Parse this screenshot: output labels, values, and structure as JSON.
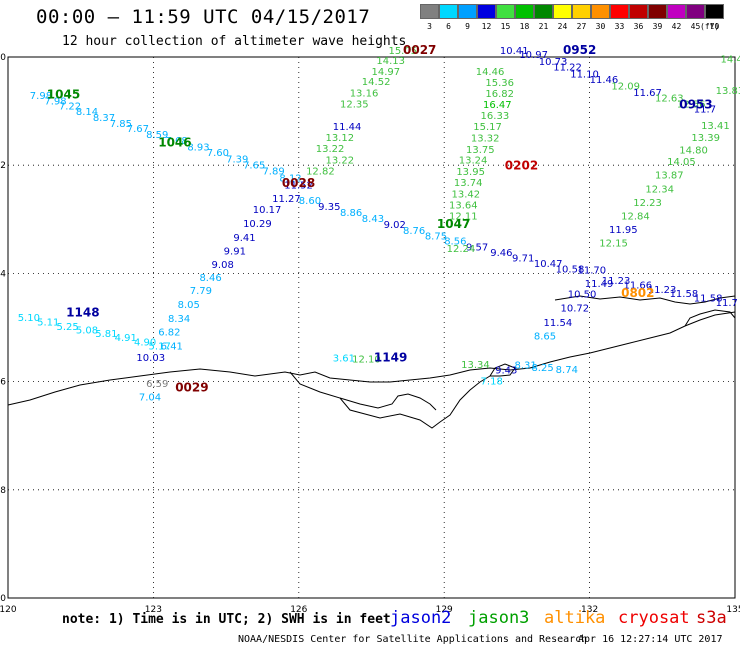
{
  "title": "00:00 – 11:59 UTC 04/15/2017",
  "subtitle": "12 hour collection of altimeter wave heights",
  "legend": {
    "unit": "(ft)",
    "items": [
      {
        "label": "3",
        "color": "#808080"
      },
      {
        "label": "6",
        "color": "#00d8ff"
      },
      {
        "label": "9",
        "color": "#00a0ff"
      },
      {
        "label": "12",
        "color": "#0000e0"
      },
      {
        "label": "15",
        "color": "#40e040"
      },
      {
        "label": "18",
        "color": "#00c000"
      },
      {
        "label": "21",
        "color": "#008800"
      },
      {
        "label": "24",
        "color": "#ffff00"
      },
      {
        "label": "27",
        "color": "#ffd000"
      },
      {
        "label": "30",
        "color": "#ff9000"
      },
      {
        "label": "33",
        "color": "#ff0000"
      },
      {
        "label": "36",
        "color": "#c00000"
      },
      {
        "label": "39",
        "color": "#800000"
      },
      {
        "label": "42",
        "color": "#c000c0"
      },
      {
        "label": "45",
        "color": "#800080"
      },
      {
        "label": "70",
        "color": "#000000"
      }
    ]
  },
  "map": {
    "lon_range": [
      120,
      135
    ],
    "lat_range": [
      -70,
      -60
    ],
    "x_ticks": [
      {
        "value": 120,
        "label": "120"
      },
      {
        "value": 123,
        "label": "123"
      },
      {
        "value": 126,
        "label": "126"
      },
      {
        "value": 129,
        "label": "129"
      },
      {
        "value": 132,
        "label": "132"
      },
      {
        "value": 135,
        "label": "135"
      }
    ],
    "y_ticks": [
      {
        "value": -60,
        "label": "-60"
      },
      {
        "value": -62,
        "label": "-62"
      },
      {
        "value": -64,
        "label": "-64"
      },
      {
        "value": -66,
        "label": "-66"
      },
      {
        "value": -68,
        "label": "-68"
      },
      {
        "value": -70,
        "label": "-70"
      }
    ],
    "pass_times": [
      {
        "label": "1045",
        "lon": 120.8,
        "lat": -60.77,
        "color": "#008800"
      },
      {
        "label": "1046",
        "lon": 123.1,
        "lat": -61.65,
        "color": "#008800"
      },
      {
        "label": "1047",
        "lon": 128.85,
        "lat": -63.16,
        "color": "#008800"
      },
      {
        "label": "1148",
        "lon": 121.2,
        "lat": -64.8,
        "color": "#0000a0"
      },
      {
        "label": "1149",
        "lon": 127.55,
        "lat": -65.63,
        "color": "#0000a0"
      },
      {
        "label": "0952",
        "lon": 131.45,
        "lat": -59.94,
        "color": "#0000a0"
      },
      {
        "label": "0953",
        "lon": 133.85,
        "lat": -60.95,
        "color": "#0000a0"
      },
      {
        "label": "0027",
        "lon": 128.15,
        "lat": -59.94,
        "color": "#800000"
      },
      {
        "label": "0028",
        "lon": 125.65,
        "lat": -62.4,
        "color": "#800000"
      },
      {
        "label": "0029",
        "lon": 123.45,
        "lat": -66.18,
        "color": "#800000"
      },
      {
        "label": "0202",
        "lon": 130.25,
        "lat": -62.08,
        "color": "#c00000"
      },
      {
        "label": "0802",
        "lon": 132.65,
        "lat": -64.44,
        "color": "#ff9000"
      }
    ],
    "swh_labels": [
      {
        "v": "7.98",
        "lon": 120.45,
        "lat": -60.78,
        "color": "#00b0ff"
      },
      {
        "v": "7.98",
        "lon": 120.75,
        "lat": -60.88,
        "color": "#00b0ff"
      },
      {
        "v": "7.22",
        "lon": 121.05,
        "lat": -60.97,
        "color": "#00b0ff"
      },
      {
        "v": "8.14",
        "lon": 121.4,
        "lat": -61.07,
        "color": "#00b0ff"
      },
      {
        "v": "8.37",
        "lon": 121.75,
        "lat": -61.18,
        "color": "#00b0ff"
      },
      {
        "v": "7.85",
        "lon": 122.1,
        "lat": -61.29,
        "color": "#00b0ff"
      },
      {
        "v": "7.67",
        "lon": 122.45,
        "lat": -61.39,
        "color": "#00b0ff"
      },
      {
        "v": "8.59",
        "lon": 122.85,
        "lat": -61.5,
        "color": "#00b0ff"
      },
      {
        "v": "7.68",
        "lon": 123.25,
        "lat": -61.61,
        "color": "#00b0ff"
      },
      {
        "v": "8.93",
        "lon": 123.7,
        "lat": -61.73,
        "color": "#00b0ff"
      },
      {
        "v": "7.60",
        "lon": 124.1,
        "lat": -61.83,
        "color": "#00b0ff"
      },
      {
        "v": "7.39",
        "lon": 124.5,
        "lat": -61.95,
        "color": "#00b0ff"
      },
      {
        "v": "7.65",
        "lon": 124.85,
        "lat": -62.06,
        "color": "#00b0ff"
      },
      {
        "v": "7.89",
        "lon": 125.25,
        "lat": -62.17,
        "color": "#00b0ff"
      },
      {
        "v": "8.12",
        "lon": 125.6,
        "lat": -62.3,
        "color": "#00b0ff"
      },
      {
        "v": "8.60",
        "lon": 126.0,
        "lat": -62.72,
        "color": "#00b0ff"
      },
      {
        "v": "9.35",
        "lon": 126.4,
        "lat": -62.83,
        "color": "#0000c0"
      },
      {
        "v": "8.86",
        "lon": 126.85,
        "lat": -62.94,
        "color": "#00b0ff"
      },
      {
        "v": "8.43",
        "lon": 127.3,
        "lat": -63.05,
        "color": "#00b0ff"
      },
      {
        "v": "9.02",
        "lon": 127.75,
        "lat": -63.16,
        "color": "#0000c0"
      },
      {
        "v": "8.76",
        "lon": 128.15,
        "lat": -63.27,
        "color": "#00b0ff"
      },
      {
        "v": "8.75",
        "lon": 128.6,
        "lat": -63.37,
        "color": "#00b0ff"
      },
      {
        "v": "8.56",
        "lon": 129.0,
        "lat": -63.47,
        "color": "#00b0ff"
      },
      {
        "v": "9.57",
        "lon": 129.45,
        "lat": -63.58,
        "color": "#0000c0"
      },
      {
        "v": "9.46",
        "lon": 129.95,
        "lat": -63.68,
        "color": "#0000c0"
      },
      {
        "v": "9.71",
        "lon": 130.4,
        "lat": -63.78,
        "color": "#0000c0"
      },
      {
        "v": "10.47",
        "lon": 130.85,
        "lat": -63.88,
        "color": "#0000c0"
      },
      {
        "v": "10.58",
        "lon": 131.3,
        "lat": -63.98,
        "color": "#0000c0"
      },
      {
        "v": "11.70",
        "lon": 131.75,
        "lat": -64.0,
        "color": "#0000c0"
      },
      {
        "v": "11.23",
        "lon": 132.25,
        "lat": -64.2,
        "color": "#0000c0"
      },
      {
        "v": "11.66",
        "lon": 132.7,
        "lat": -64.28,
        "color": "#0000c0"
      },
      {
        "v": "11.23",
        "lon": 133.2,
        "lat": -64.36,
        "color": "#0000c0"
      },
      {
        "v": "11.58",
        "lon": 133.65,
        "lat": -64.44,
        "color": "#0000c0"
      },
      {
        "v": "11.58",
        "lon": 134.15,
        "lat": -64.52,
        "color": "#0000c0"
      },
      {
        "v": "11.7",
        "lon": 134.6,
        "lat": -64.6,
        "color": "#0000c0"
      },
      {
        "v": "11.52",
        "lon": 125.7,
        "lat": -62.43,
        "color": "#0000c0"
      },
      {
        "v": "11.27",
        "lon": 125.45,
        "lat": -62.68,
        "color": "#0000c0"
      },
      {
        "v": "10.17",
        "lon": 125.05,
        "lat": -62.88,
        "color": "#0000c0"
      },
      {
        "v": "10.29",
        "lon": 124.85,
        "lat": -63.14,
        "color": "#0000c0"
      },
      {
        "v": "9.41",
        "lon": 124.65,
        "lat": -63.4,
        "color": "#0000c0"
      },
      {
        "v": "9.91",
        "lon": 124.45,
        "lat": -63.65,
        "color": "#0000c0"
      },
      {
        "v": "9.08",
        "lon": 124.2,
        "lat": -63.9,
        "color": "#0000c0"
      },
      {
        "v": "8.46",
        "lon": 123.95,
        "lat": -64.14,
        "color": "#00b0ff"
      },
      {
        "v": "7.79",
        "lon": 123.75,
        "lat": -64.38,
        "color": "#00b0ff"
      },
      {
        "v": "8.05",
        "lon": 123.5,
        "lat": -64.64,
        "color": "#00b0ff"
      },
      {
        "v": "8.34",
        "lon": 123.3,
        "lat": -64.9,
        "color": "#00b0ff"
      },
      {
        "v": "6.82",
        "lon": 123.1,
        "lat": -65.15,
        "color": "#00b0ff"
      },
      {
        "v": "5.17",
        "lon": 122.9,
        "lat": -65.41,
        "color": "#00d8ff"
      },
      {
        "v": "6.41",
        "lon": 123.15,
        "lat": -65.41,
        "color": "#00b0ff"
      },
      {
        "v": "10.03",
        "lon": 122.65,
        "lat": -65.62,
        "color": "#0000c0"
      },
      {
        "v": "5.10",
        "lon": 120.2,
        "lat": -64.88,
        "color": "#00d8ff"
      },
      {
        "v": "5.11",
        "lon": 120.6,
        "lat": -64.96,
        "color": "#00d8ff"
      },
      {
        "v": "5.25",
        "lon": 121.0,
        "lat": -65.05,
        "color": "#00d8ff"
      },
      {
        "v": "5.08",
        "lon": 121.4,
        "lat": -65.11,
        "color": "#00d8ff"
      },
      {
        "v": "5.81",
        "lon": 121.8,
        "lat": -65.18,
        "color": "#00d8ff"
      },
      {
        "v": "4.91",
        "lon": 122.2,
        "lat": -65.25,
        "color": "#00d8ff"
      },
      {
        "v": "4.90",
        "lon": 122.6,
        "lat": -65.33,
        "color": "#00d8ff"
      },
      {
        "v": "15.05",
        "lon": 127.85,
        "lat": -59.94,
        "color": "#40c040"
      },
      {
        "v": "14.13",
        "lon": 127.6,
        "lat": -60.13,
        "color": "#40c040"
      },
      {
        "v": "14.97",
        "lon": 127.5,
        "lat": -60.33,
        "color": "#40c040"
      },
      {
        "v": "14.52",
        "lon": 127.3,
        "lat": -60.52,
        "color": "#40c040"
      },
      {
        "v": "13.16",
        "lon": 127.05,
        "lat": -60.73,
        "color": "#40c040"
      },
      {
        "v": "12.35",
        "lon": 126.85,
        "lat": -60.93,
        "color": "#40c040"
      },
      {
        "v": "11.44",
        "lon": 126.7,
        "lat": -61.35,
        "color": "#0000c0"
      },
      {
        "v": "13.12",
        "lon": 126.55,
        "lat": -61.55,
        "color": "#40c040"
      },
      {
        "v": "13.22",
        "lon": 126.35,
        "lat": -61.76,
        "color": "#40c040"
      },
      {
        "v": "13.22",
        "lon": 126.55,
        "lat": -61.97,
        "color": "#40c040"
      },
      {
        "v": "12.82",
        "lon": 126.15,
        "lat": -62.17,
        "color": "#40c040"
      },
      {
        "v": "14.46",
        "lon": 129.65,
        "lat": -60.33,
        "color": "#40c040"
      },
      {
        "v": "15.36",
        "lon": 129.85,
        "lat": -60.54,
        "color": "#40c040"
      },
      {
        "v": "16.82",
        "lon": 129.85,
        "lat": -60.74,
        "color": "#40c040"
      },
      {
        "v": "16.47",
        "lon": 129.8,
        "lat": -60.94,
        "color": "#00c000"
      },
      {
        "v": "16.33",
        "lon": 129.75,
        "lat": -61.15,
        "color": "#40c040"
      },
      {
        "v": "15.17",
        "lon": 129.6,
        "lat": -61.35,
        "color": "#40c040"
      },
      {
        "v": "13.32",
        "lon": 129.55,
        "lat": -61.56,
        "color": "#40c040"
      },
      {
        "v": "13.75",
        "lon": 129.45,
        "lat": -61.77,
        "color": "#40c040"
      },
      {
        "v": "13.24",
        "lon": 129.3,
        "lat": -61.97,
        "color": "#40c040"
      },
      {
        "v": "13.95",
        "lon": 129.25,
        "lat": -62.18,
        "color": "#40c040"
      },
      {
        "v": "13.74",
        "lon": 129.2,
        "lat": -62.38,
        "color": "#40c040"
      },
      {
        "v": "13.42",
        "lon": 129.15,
        "lat": -62.6,
        "color": "#40c040"
      },
      {
        "v": "13.64",
        "lon": 129.1,
        "lat": -62.8,
        "color": "#40c040"
      },
      {
        "v": "12.11",
        "lon": 129.1,
        "lat": -63.0,
        "color": "#40c040"
      },
      {
        "v": "12.24",
        "lon": 129.05,
        "lat": -63.6,
        "color": "#40c040"
      },
      {
        "v": "10.41",
        "lon": 130.15,
        "lat": -59.94,
        "color": "#0000c0"
      },
      {
        "v": "10.97",
        "lon": 130.55,
        "lat": -60.02,
        "color": "#0000c0"
      },
      {
        "v": "10.73",
        "lon": 130.95,
        "lat": -60.15,
        "color": "#0000c0"
      },
      {
        "v": "11.22",
        "lon": 131.25,
        "lat": -60.25,
        "color": "#0000c0"
      },
      {
        "v": "11.10",
        "lon": 131.6,
        "lat": -60.38,
        "color": "#0000c0"
      },
      {
        "v": "11.46",
        "lon": 132.0,
        "lat": -60.48,
        "color": "#0000c0"
      },
      {
        "v": "12.09",
        "lon": 132.45,
        "lat": -60.6,
        "color": "#40c040"
      },
      {
        "v": "11.67",
        "lon": 132.9,
        "lat": -60.72,
        "color": "#0000c0"
      },
      {
        "v": "12.63",
        "lon": 133.35,
        "lat": -60.82,
        "color": "#40c040"
      },
      {
        "v": "12.56",
        "lon": 133.8,
        "lat": -60.93,
        "color": "#40c040"
      },
      {
        "v": "11.7",
        "lon": 134.15,
        "lat": -61.03,
        "color": "#0000c0"
      },
      {
        "v": "14.4",
        "lon": 134.7,
        "lat": -60.1,
        "color": "#40c040"
      },
      {
        "v": "13.83",
        "lon": 134.6,
        "lat": -60.68,
        "color": "#40c040"
      },
      {
        "v": "13.41",
        "lon": 134.3,
        "lat": -61.33,
        "color": "#40c040"
      },
      {
        "v": "13.39",
        "lon": 134.1,
        "lat": -61.55,
        "color": "#40c040"
      },
      {
        "v": "14.80",
        "lon": 133.85,
        "lat": -61.78,
        "color": "#40c040"
      },
      {
        "v": "14.05",
        "lon": 133.6,
        "lat": -62.0,
        "color": "#40c040"
      },
      {
        "v": "13.87",
        "lon": 133.35,
        "lat": -62.25,
        "color": "#40c040"
      },
      {
        "v": "12.34",
        "lon": 133.15,
        "lat": -62.5,
        "color": "#40c040"
      },
      {
        "v": "12.23",
        "lon": 132.9,
        "lat": -62.75,
        "color": "#40c040"
      },
      {
        "v": "12.84",
        "lon": 132.65,
        "lat": -63.0,
        "color": "#40c040"
      },
      {
        "v": "11.95",
        "lon": 132.4,
        "lat": -63.25,
        "color": "#0000c0"
      },
      {
        "v": "12.15",
        "lon": 132.2,
        "lat": -63.5,
        "color": "#40c040"
      },
      {
        "v": "11.49",
        "lon": 131.9,
        "lat": -64.25,
        "color": "#0000c0"
      },
      {
        "v": "10.50",
        "lon": 131.55,
        "lat": -64.45,
        "color": "#0000c0"
      },
      {
        "v": "10.72",
        "lon": 131.4,
        "lat": -64.7,
        "color": "#0000c0"
      },
      {
        "v": "11.54",
        "lon": 131.05,
        "lat": -64.97,
        "color": "#0000c0"
      },
      {
        "v": "8.65",
        "lon": 130.85,
        "lat": -65.22,
        "color": "#00b0ff"
      },
      {
        "v": "3.61",
        "lon": 126.7,
        "lat": -65.63,
        "color": "#00d8ff"
      },
      {
        "v": "12.10",
        "lon": 127.1,
        "lat": -65.65,
        "color": "#40c040"
      },
      {
        "v": "13.34",
        "lon": 129.35,
        "lat": -65.75,
        "color": "#40c040"
      },
      {
        "v": "9.43",
        "lon": 130.05,
        "lat": -65.85,
        "color": "#0000c0"
      },
      {
        "v": "8.31",
        "lon": 130.45,
        "lat": -65.76,
        "color": "#00b0ff"
      },
      {
        "v": "8.25",
        "lon": 130.8,
        "lat": -65.8,
        "color": "#00b0ff"
      },
      {
        "v": "8.74",
        "lon": 131.3,
        "lat": -65.84,
        "color": "#00b0ff"
      },
      {
        "v": "7.18",
        "lon": 129.75,
        "lat": -66.05,
        "color": "#00d8ff"
      },
      {
        "v": "6.59",
        "lon": 122.85,
        "lat": -66.1,
        "color": "#808080"
      },
      {
        "v": "7.04",
        "lon": 122.7,
        "lat": -66.35,
        "color": "#00b0ff"
      }
    ]
  },
  "note": "note: 1) Time is in UTC; 2) SWH is in feet",
  "satellites": [
    {
      "name": "jason2",
      "color": "#0000dd"
    },
    {
      "name": "jason3",
      "color": "#00a000"
    },
    {
      "name": "altika",
      "color": "#ff9000"
    },
    {
      "name": "cryosat",
      "color": "#ee0000"
    },
    {
      "name": "s3a",
      "color": "#cc0000"
    }
  ],
  "footer": "NOAA/NESDIS Center for Satellite Applications and Research",
  "footer_time": "Apr 16 12:27:14 UTC 2017"
}
